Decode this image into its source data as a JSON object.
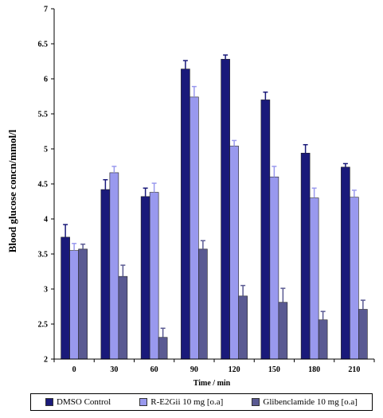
{
  "chart_data": {
    "type": "bar",
    "title": "",
    "xlabel": "Time / min",
    "ylabel": "Blood glucose concn/mmol/l",
    "categories": [
      "0",
      "30",
      "60",
      "90",
      "120",
      "150",
      "180",
      "210"
    ],
    "ylim": [
      2,
      7
    ],
    "yticks": [
      "2",
      "2.5",
      "3",
      "3.5",
      "4",
      "4.5",
      "5",
      "5.5",
      "6",
      "6.5",
      "7"
    ],
    "grid": false,
    "legend_position": "bottom",
    "series": [
      {
        "name": "DMSO Control",
        "color": "#1a1a7a",
        "values": [
          3.74,
          4.42,
          4.32,
          6.14,
          6.28,
          5.7,
          4.94,
          4.74
        ],
        "errors": [
          0.18,
          0.14,
          0.12,
          0.12,
          0.06,
          0.11,
          0.12,
          0.05
        ]
      },
      {
        "name": "R-E2Gii 10 mg [o.a]",
        "color": "#9999ee",
        "values": [
          3.55,
          4.66,
          4.38,
          5.74,
          5.04,
          4.6,
          4.3,
          4.31
        ],
        "errors": [
          0.1,
          0.09,
          0.13,
          0.15,
          0.08,
          0.15,
          0.14,
          0.1
        ]
      },
      {
        "name": "Glibenclamide 10 mg [o.a]",
        "color": "#5a5a92",
        "values": [
          3.57,
          3.18,
          2.31,
          3.57,
          2.9,
          2.81,
          2.56,
          2.71
        ],
        "errors": [
          0.07,
          0.16,
          0.13,
          0.12,
          0.15,
          0.2,
          0.12,
          0.13
        ]
      }
    ]
  }
}
